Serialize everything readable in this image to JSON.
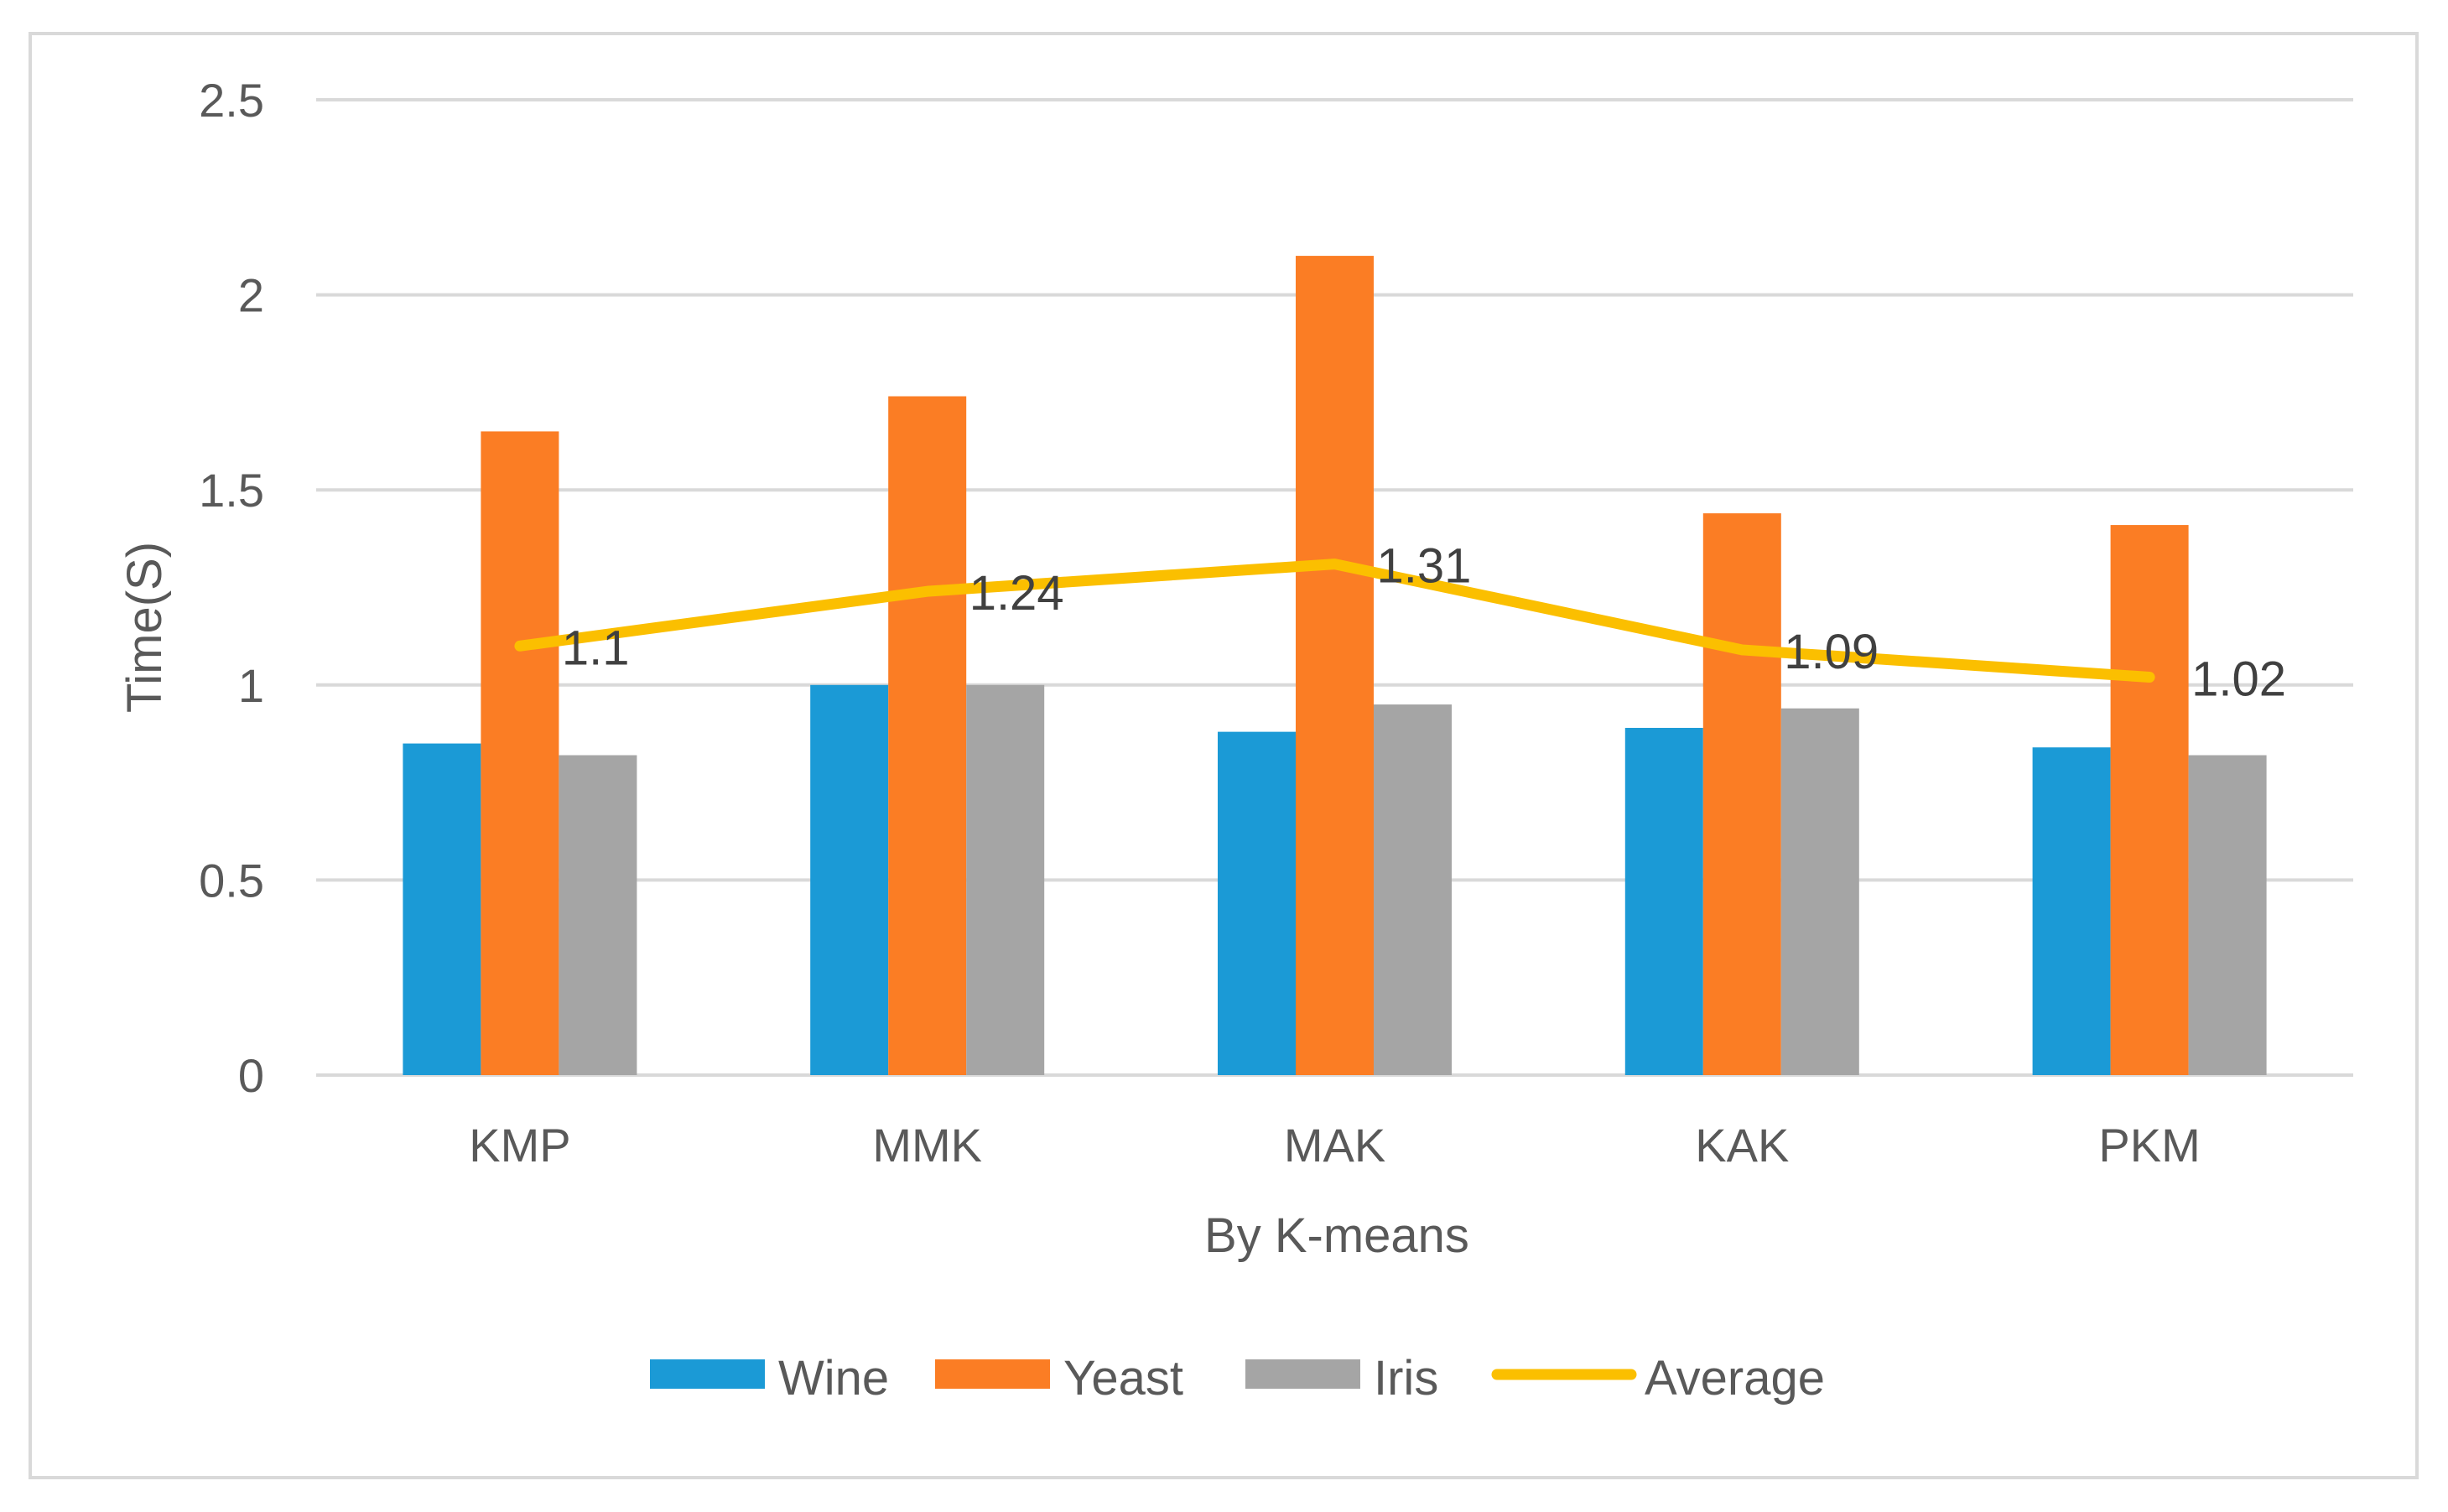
{
  "chart_data": {
    "type": "bar",
    "title": "",
    "xlabel": "By K-means",
    "ylabel": "Time(S)",
    "ylim": [
      0,
      2.5
    ],
    "yticks": [
      "0",
      "0.5",
      "1",
      "1.5",
      "2",
      "2.5"
    ],
    "yticks_values": [
      0,
      0.5,
      1,
      1.5,
      2,
      2.5
    ],
    "grid": true,
    "legend_position": "bottom",
    "categories": [
      "KMP",
      "MMK",
      "MAK",
      "KAK",
      "PKM"
    ],
    "series": [
      {
        "name": "Wine",
        "kind": "bar",
        "color": "#1b9ad6",
        "values": [
          0.85,
          1.0,
          0.88,
          0.89,
          0.84
        ]
      },
      {
        "name": "Yeast",
        "kind": "bar",
        "color": "#fb7d24",
        "values": [
          1.65,
          1.74,
          2.1,
          1.44,
          1.41
        ]
      },
      {
        "name": "Iris",
        "kind": "bar",
        "color": "#a5a5a5",
        "values": [
          0.82,
          1.0,
          0.95,
          0.94,
          0.82
        ]
      },
      {
        "name": "Average",
        "kind": "line",
        "color": "#fbbf00",
        "values": [
          1.1,
          1.24,
          1.31,
          1.09,
          1.02
        ],
        "data_labels": [
          "1.1",
          "1.24",
          "1.31",
          "1.09",
          "1.02"
        ]
      }
    ]
  }
}
